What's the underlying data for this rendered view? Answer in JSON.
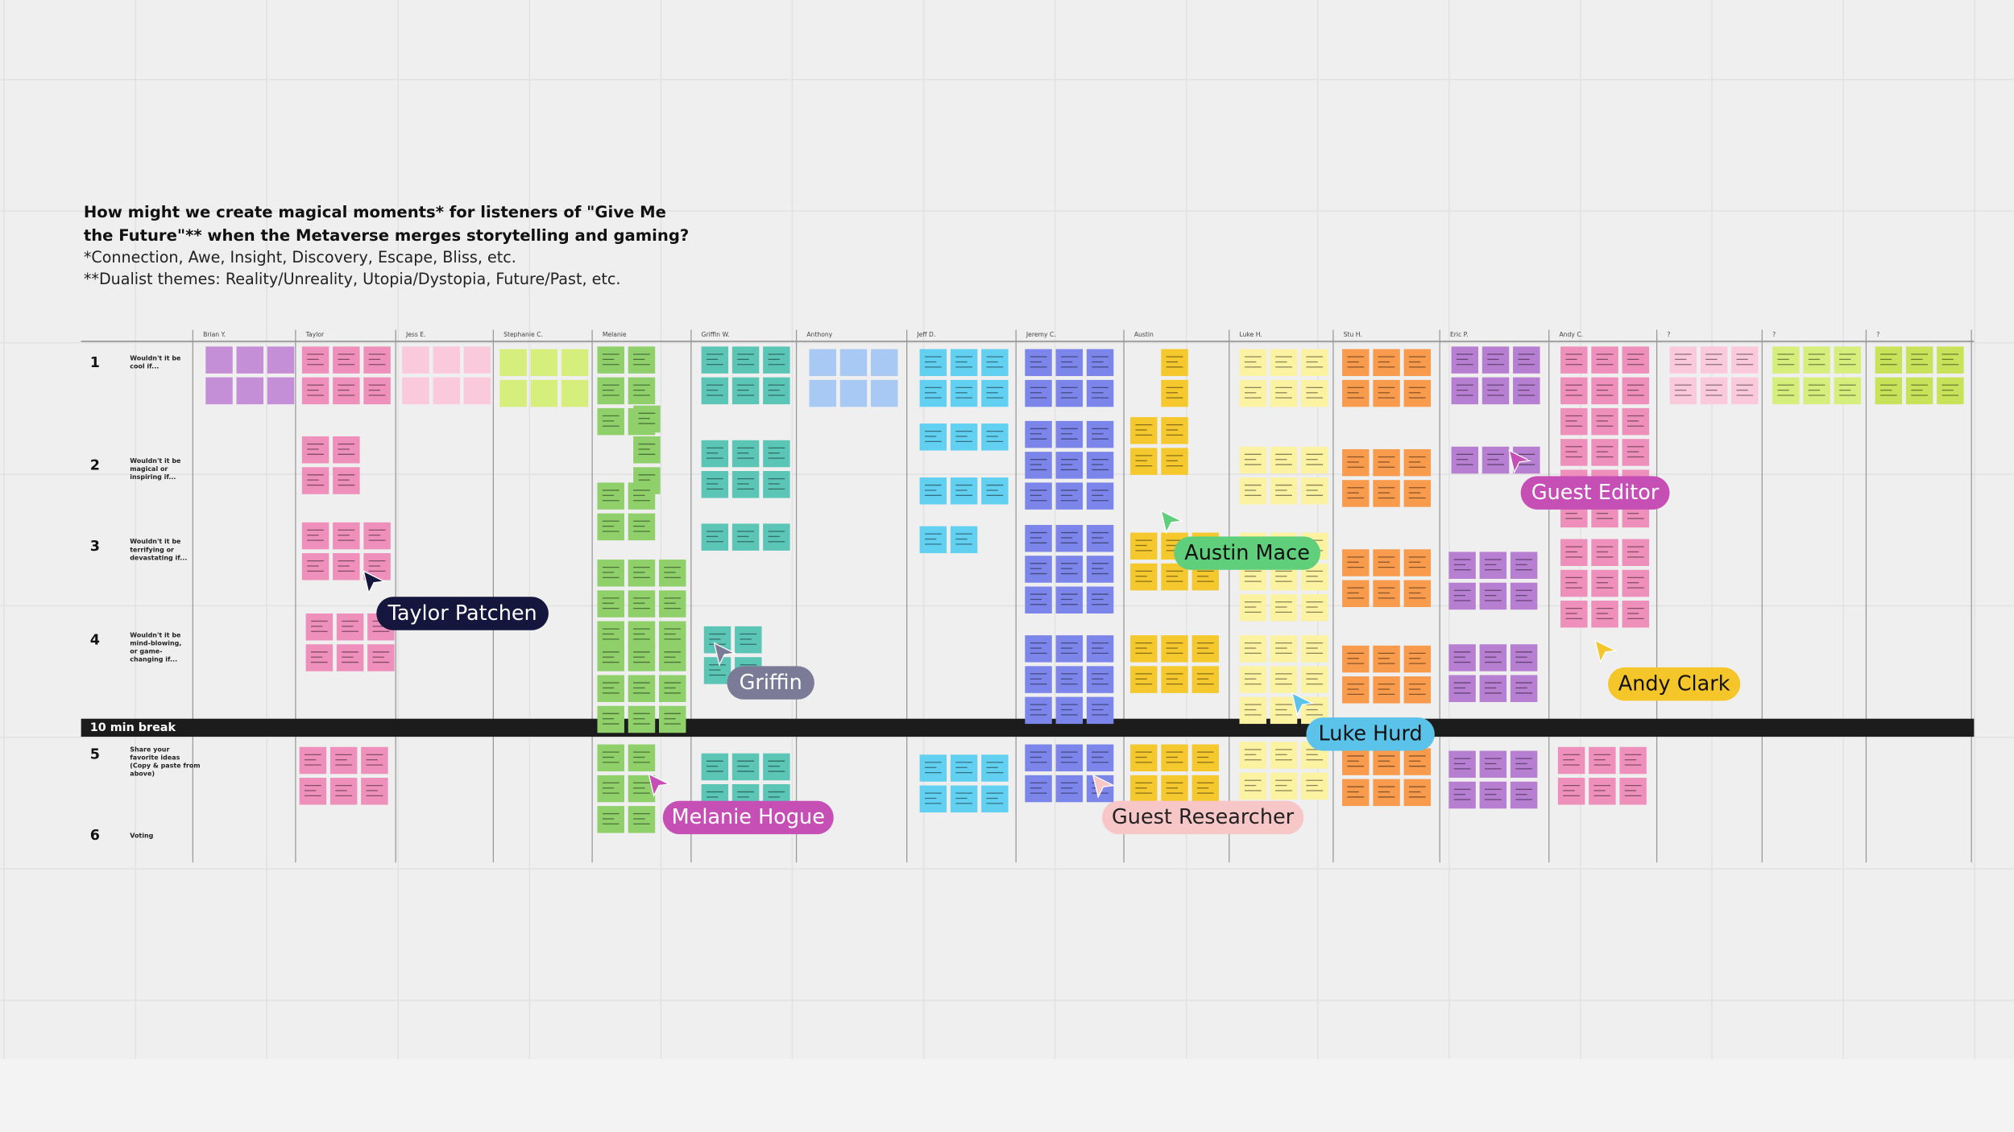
{
  "header": {
    "question_lines": [
      "How might we create magical moments* for listeners of \"Give Me",
      "the Future\"** when the Metaverse merges storytelling and gaming?"
    ],
    "notes": [
      "*Connection, Awe, Insight, Discovery, Escape, Bliss, etc.",
      "**Dualist themes: Reality/Unreality, Utopia/Dystopia, Future/Past, etc."
    ]
  },
  "columns": [
    "Brian Y.",
    "Taylor",
    "Jess E.",
    "Stephanie C.",
    "Melanie",
    "Griffin W.",
    "Anthony",
    "Jeff D.",
    "Jeremy C.",
    "Austin",
    "Luke H.",
    "Stu H.",
    "Eric P.",
    "Andy C.",
    "?",
    "?",
    "?"
  ],
  "rows": [
    {
      "number": 1,
      "lines": [
        "Wouldn't it be",
        "cool if..."
      ]
    },
    {
      "number": 2,
      "lines": [
        "Wouldn't it be",
        "magical or",
        "inspiring if..."
      ]
    },
    {
      "number": 3,
      "lines": [
        "Wouldn't it be",
        "terrifying or",
        "devastating if..."
      ]
    },
    {
      "number": 4,
      "lines": [
        "Wouldn't it be",
        "mind-blowing,",
        "or game-",
        "changing if..."
      ]
    },
    {
      "number": 5,
      "lines": [
        "Share your",
        "favorite ideas",
        "(Copy & paste from",
        "above)"
      ]
    },
    {
      "number": 6,
      "lines": [
        "Voting"
      ]
    }
  ],
  "break_label": "10 min break",
  "cursors": [
    "Taylor Patchen",
    "Griffin",
    "Melanie Hogue",
    "Guest Researcher",
    "Austin Mace",
    "Luke Hurd",
    "Guest Editor",
    "Andy Clark"
  ]
}
